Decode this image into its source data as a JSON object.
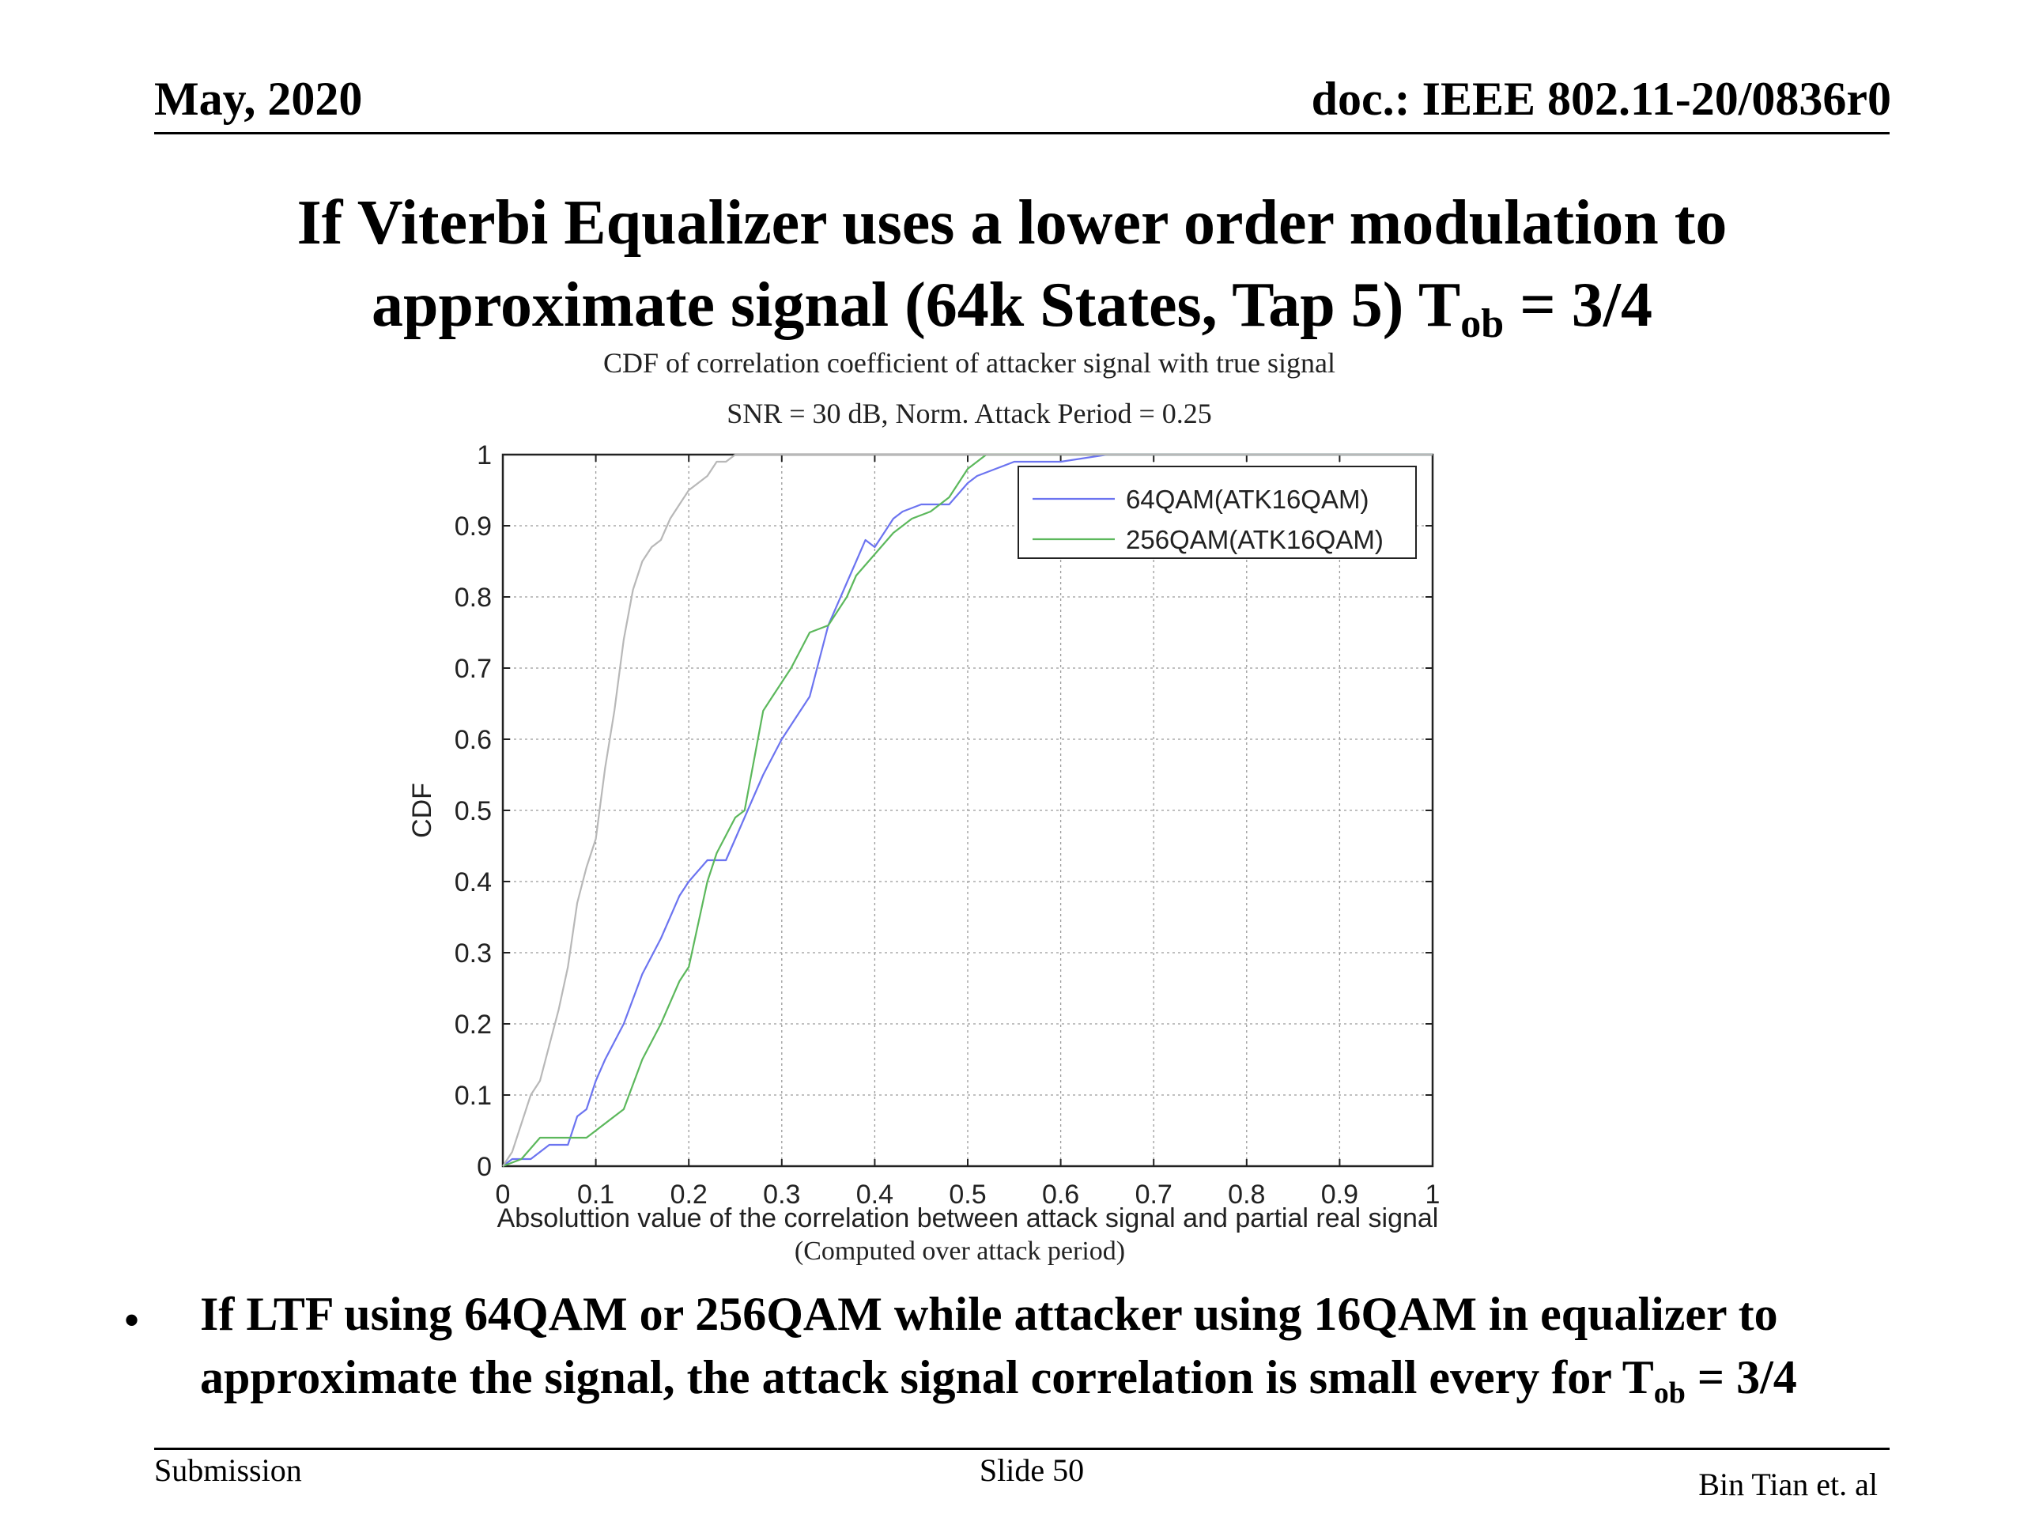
{
  "header": {
    "date": "May, 2020",
    "doc": "doc.: IEEE 802.11-20/0836r0"
  },
  "title": {
    "line1": "If Viterbi Equalizer uses a lower order modulation to",
    "line2_main": "approximate signal (64k States, Tap 5)  T",
    "line2_sub": "ob",
    "line2_tail": " = 3/4"
  },
  "chart_data": {
    "type": "line",
    "title_line1": "CDF of correlation coefficient of attacker signal with true signal",
    "title_line2": "SNR = 30 dB, Norm. Attack Period = 0.25",
    "xlabel": "Absoluttion value of the correlation between attack signal and partial real signal",
    "xlabel_note": "(Computed over attack period)",
    "ylabel": "CDF",
    "xlim": [
      0,
      1
    ],
    "ylim": [
      0,
      1
    ],
    "xticks": [
      "0",
      "0.1",
      "0.2",
      "0.3",
      "0.4",
      "0.5",
      "0.6",
      "0.7",
      "0.8",
      "0.9",
      "1"
    ],
    "yticks": [
      "0",
      "0.1",
      "0.2",
      "0.3",
      "0.4",
      "0.5",
      "0.6",
      "0.7",
      "0.8",
      "0.9",
      "1"
    ],
    "grid": true,
    "legend_position": "top-right",
    "series": [
      {
        "name": "64QAM(ATK16QAM)",
        "color": "#6c74f0",
        "x": [
          0,
          0.01,
          0.03,
          0.05,
          0.07,
          0.08,
          0.09,
          0.1,
          0.11,
          0.13,
          0.15,
          0.17,
          0.19,
          0.2,
          0.22,
          0.24,
          0.25,
          0.27,
          0.28,
          0.3,
          0.32,
          0.33,
          0.35,
          0.37,
          0.38,
          0.39,
          0.4,
          0.42,
          0.43,
          0.45,
          0.47,
          0.48,
          0.5,
          0.51,
          0.53,
          0.55,
          0.6,
          0.65,
          0.7,
          1
        ],
        "y": [
          0,
          0.01,
          0.01,
          0.03,
          0.03,
          0.07,
          0.08,
          0.12,
          0.15,
          0.2,
          0.27,
          0.32,
          0.38,
          0.4,
          0.43,
          0.43,
          0.46,
          0.52,
          0.55,
          0.6,
          0.64,
          0.66,
          0.76,
          0.82,
          0.85,
          0.88,
          0.87,
          0.91,
          0.92,
          0.93,
          0.93,
          0.93,
          0.96,
          0.97,
          0.98,
          0.99,
          0.99,
          1,
          1,
          1
        ]
      },
      {
        "name": "256QAM(ATK16QAM)",
        "color": "#5cb85c",
        "x": [
          0,
          0.02,
          0.04,
          0.06,
          0.08,
          0.09,
          0.1,
          0.12,
          0.13,
          0.15,
          0.17,
          0.19,
          0.2,
          0.22,
          0.23,
          0.25,
          0.26,
          0.28,
          0.29,
          0.3,
          0.31,
          0.33,
          0.35,
          0.37,
          0.38,
          0.4,
          0.42,
          0.44,
          0.46,
          0.48,
          0.5,
          0.52,
          0.55,
          0.6,
          0.7,
          1
        ],
        "y": [
          0,
          0.01,
          0.04,
          0.04,
          0.04,
          0.04,
          0.05,
          0.07,
          0.08,
          0.15,
          0.2,
          0.26,
          0.28,
          0.4,
          0.44,
          0.49,
          0.5,
          0.64,
          0.66,
          0.68,
          0.7,
          0.75,
          0.76,
          0.8,
          0.83,
          0.86,
          0.89,
          0.91,
          0.92,
          0.94,
          0.98,
          1,
          1,
          1,
          1,
          1
        ]
      },
      {
        "color": "#b8b8b8",
        "x": [
          0,
          0.01,
          0.03,
          0.04,
          0.05,
          0.06,
          0.07,
          0.08,
          0.09,
          0.1,
          0.11,
          0.12,
          0.13,
          0.14,
          0.15,
          0.16,
          0.17,
          0.18,
          0.19,
          0.2,
          0.21,
          0.22,
          0.23,
          0.24,
          0.25,
          0.26,
          0.3,
          1
        ],
        "y": [
          0,
          0.02,
          0.1,
          0.12,
          0.17,
          0.22,
          0.28,
          0.37,
          0.42,
          0.46,
          0.56,
          0.64,
          0.74,
          0.81,
          0.85,
          0.87,
          0.88,
          0.91,
          0.93,
          0.95,
          0.96,
          0.97,
          0.99,
          0.99,
          1,
          1,
          1,
          1
        ]
      }
    ]
  },
  "bullet": {
    "marker": "•",
    "line1": "If LTF using 64QAM or 256QAM while attacker using 16QAM in equalizer to",
    "line2_main": "approximate the signal, the attack signal correlation is small every for T",
    "line2_sub": "ob",
    "line2_tail": " = 3/4"
  },
  "footer": {
    "left": "Submission",
    "center": "Slide 50",
    "right": "Bin Tian et. al"
  }
}
